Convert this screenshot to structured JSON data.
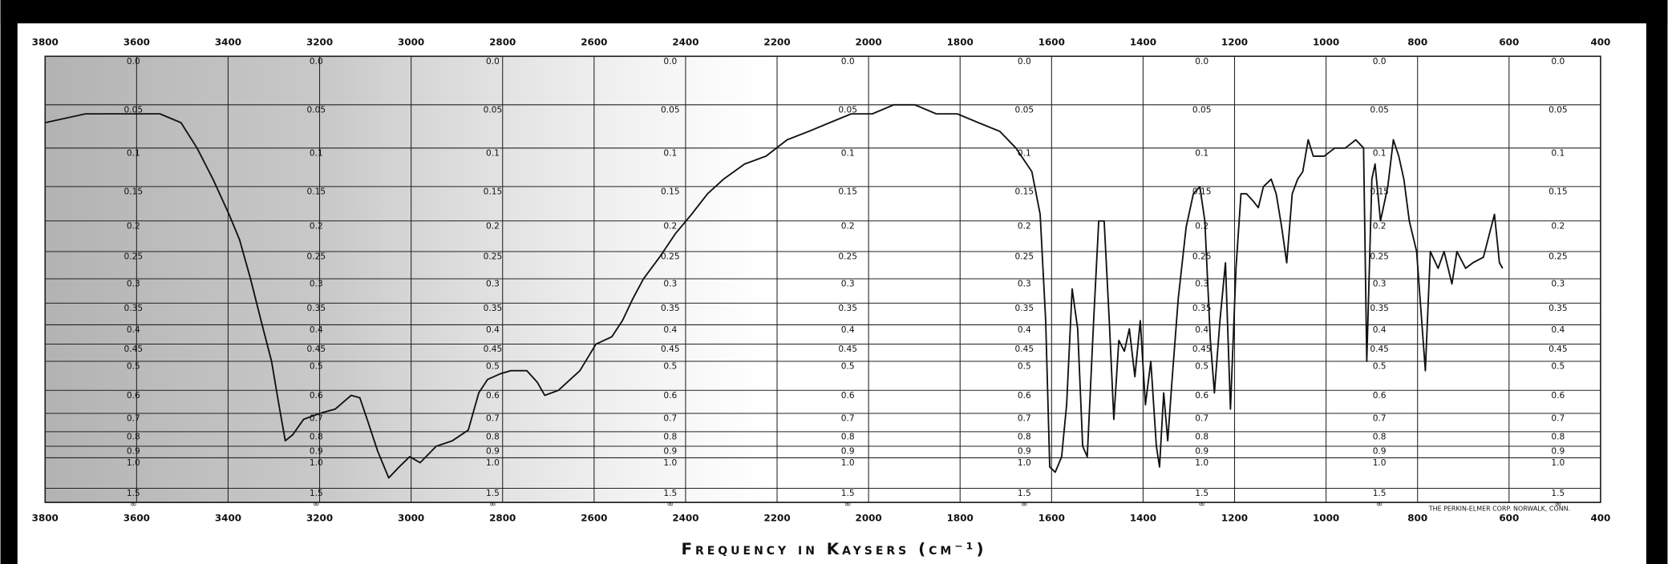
{
  "chart_data": {
    "type": "line",
    "x_label": "Frequency in Kaysers (cm⁻¹)",
    "annotation": "THE PERKIN-ELMER CORP. NORWALK, CONN.",
    "color": "#111111",
    "grid": true,
    "xlim": [
      3800,
      400
    ],
    "xticks": [
      3800,
      3600,
      3400,
      3200,
      3000,
      2800,
      2600,
      2400,
      2200,
      2000,
      1800,
      1600,
      1400,
      1200,
      1000,
      800,
      600,
      400
    ],
    "yscale": "absorbance",
    "ylim": [
      0,
      1.5
    ],
    "yticks": [
      {
        "value": 0,
        "label": "0.0"
      },
      0.05,
      0.1,
      0.15,
      0.2,
      0.25,
      0.3,
      0.35,
      0.4,
      0.45,
      0.5,
      0.6,
      0.7,
      0.8,
      0.9,
      {
        "value": 1,
        "label": "1.0"
      },
      1.5
    ],
    "infinity_label": "∞",
    "x": [
      3800,
      3712,
      3619,
      3549,
      3503,
      3468,
      3433,
      3398,
      3375,
      3351,
      3328,
      3305,
      3289,
      3275,
      3259,
      3235,
      3200,
      3166,
      3131,
      3112,
      3096,
      3073,
      3049,
      3026,
      3003,
      2980,
      2945,
      2910,
      2875,
      2852,
      2833,
      2805,
      2782,
      2747,
      2724,
      2708,
      2678,
      2631,
      2596,
      2561,
      2538,
      2515,
      2492,
      2457,
      2422,
      2387,
      2352,
      2317,
      2271,
      2224,
      2178,
      2131,
      2085,
      2038,
      1992,
      1945,
      1922,
      1899,
      1852,
      1806,
      1760,
      1713,
      1678,
      1643,
      1625,
      1613,
      1604,
      1592,
      1578,
      1567,
      1555,
      1543,
      1532,
      1522,
      1508,
      1497,
      1485,
      1474,
      1464,
      1453,
      1441,
      1430,
      1418,
      1406,
      1395,
      1383,
      1371,
      1364,
      1355,
      1346,
      1337,
      1323,
      1306,
      1290,
      1276,
      1265,
      1253,
      1244,
      1232,
      1220,
      1209,
      1197,
      1186,
      1174,
      1160,
      1148,
      1137,
      1120,
      1109,
      1097,
      1086,
      1074,
      1062,
      1051,
      1039,
      1028,
      1004,
      981,
      958,
      935,
      918,
      911,
      900,
      893,
      881,
      865,
      853,
      841,
      830,
      818,
      802,
      783,
      772,
      755,
      742,
      725,
      714,
      695,
      679,
      656,
      632,
      621,
      614
    ],
    "values": [
      0.07,
      0.06,
      0.06,
      0.06,
      0.07,
      0.1,
      0.14,
      0.19,
      0.23,
      0.3,
      0.39,
      0.5,
      0.66,
      0.86,
      0.82,
      0.73,
      0.7,
      0.68,
      0.62,
      0.63,
      0.73,
      0.94,
      1.26,
      1.1,
      0.99,
      1.05,
      0.9,
      0.86,
      0.79,
      0.61,
      0.56,
      0.54,
      0.53,
      0.53,
      0.57,
      0.62,
      0.6,
      0.53,
      0.45,
      0.43,
      0.39,
      0.34,
      0.3,
      0.26,
      0.22,
      0.19,
      0.16,
      0.14,
      0.12,
      0.11,
      0.09,
      0.08,
      0.07,
      0.06,
      0.06,
      0.05,
      0.05,
      0.05,
      0.06,
      0.06,
      0.07,
      0.08,
      0.1,
      0.13,
      0.19,
      0.39,
      1.1,
      1.17,
      0.99,
      0.66,
      0.32,
      0.41,
      0.9,
      0.99,
      0.39,
      0.2,
      0.2,
      0.39,
      0.73,
      0.44,
      0.47,
      0.41,
      0.55,
      0.39,
      0.66,
      0.5,
      0.9,
      1.1,
      0.61,
      0.86,
      0.57,
      0.34,
      0.21,
      0.16,
      0.15,
      0.2,
      0.44,
      0.61,
      0.39,
      0.27,
      0.68,
      0.28,
      0.16,
      0.16,
      0.17,
      0.18,
      0.15,
      0.14,
      0.16,
      0.21,
      0.27,
      0.16,
      0.14,
      0.13,
      0.09,
      0.11,
      0.11,
      0.1,
      0.1,
      0.09,
      0.1,
      0.5,
      0.14,
      0.12,
      0.2,
      0.15,
      0.09,
      0.11,
      0.14,
      0.2,
      0.25,
      0.53,
      0.25,
      0.28,
      0.25,
      0.31,
      0.25,
      0.28,
      0.27,
      0.26,
      0.19,
      0.27,
      0.28
    ]
  }
}
